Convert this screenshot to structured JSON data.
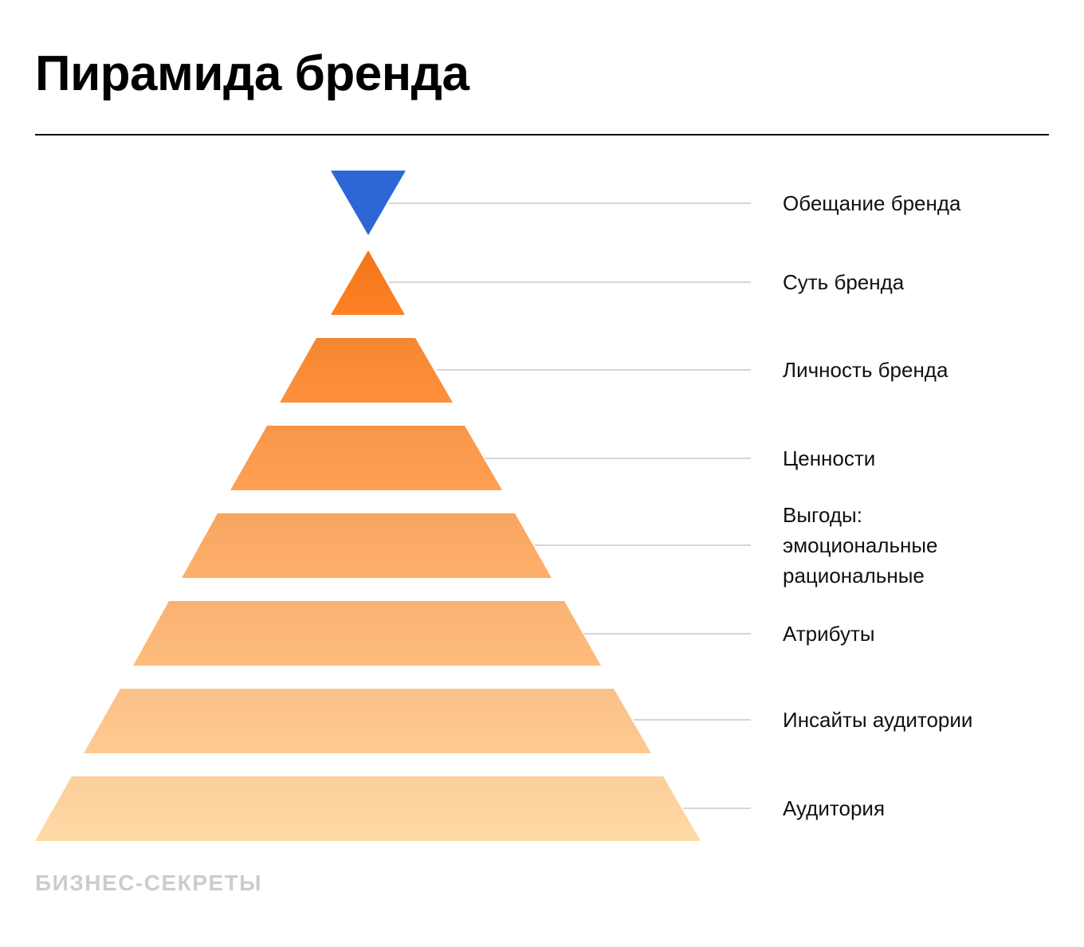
{
  "title": "Пирамида бренда",
  "levels": [
    {
      "label": [
        "Обещание бренда"
      ],
      "color": "#2d67d6"
    },
    {
      "label": [
        "Суть бренда"
      ],
      "color": "#f77a1e"
    },
    {
      "label": [
        "Личность бренда"
      ],
      "color": "#f98a36"
    },
    {
      "label": [
        "Ценности"
      ],
      "color": "#fa9a4e"
    },
    {
      "label": [
        "Выгоды:",
        "эмоциональные",
        "рациональные"
      ],
      "color": "#fba964"
    },
    {
      "label": [
        "Атрибуты"
      ],
      "color": "#fcb677"
    },
    {
      "label": [
        "Инсайты аудитории"
      ],
      "color": "#fdc48b"
    },
    {
      "label": [
        "Аудитория"
      ],
      "color": "#fed39f"
    }
  ],
  "footer": "БИЗНЕС-СЕКРЕТЫ"
}
